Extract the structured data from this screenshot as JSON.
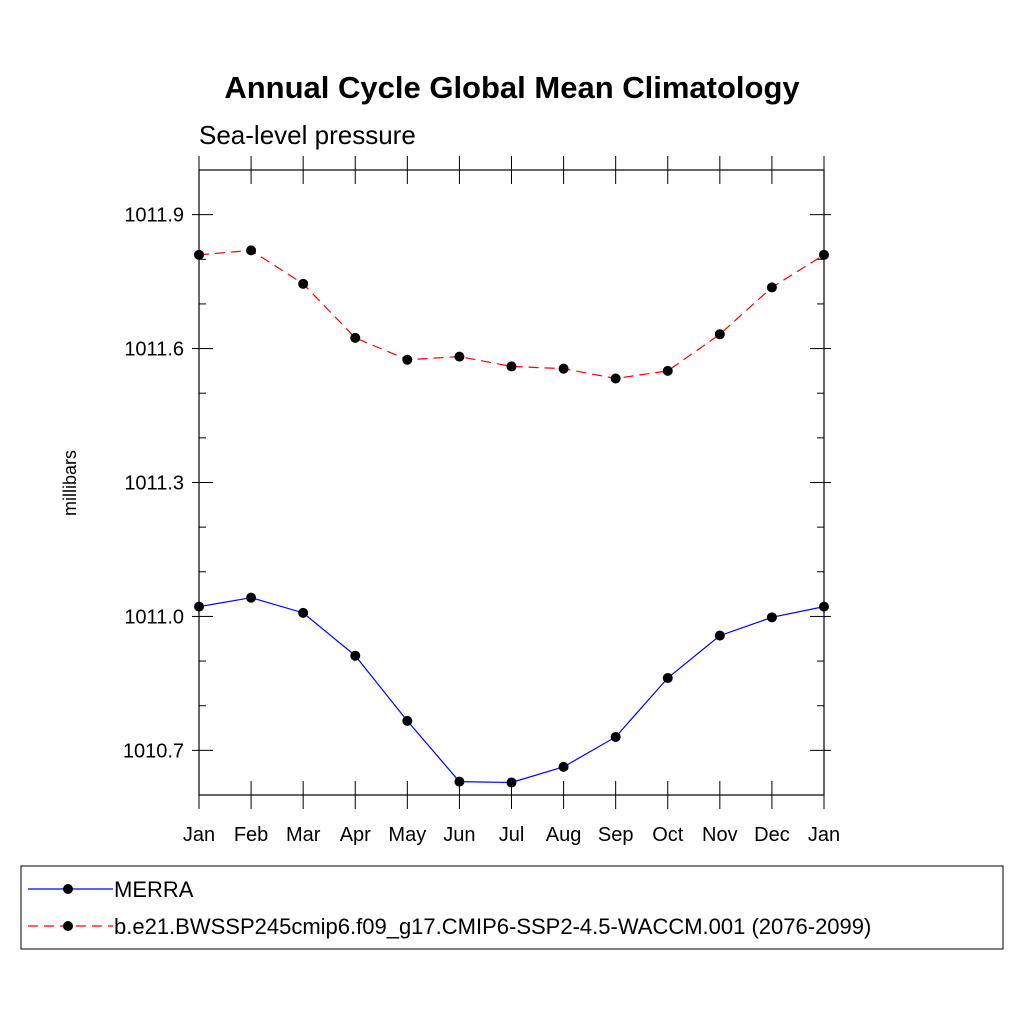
{
  "chart_data": {
    "type": "line",
    "title": "Annual Cycle Global Mean Climatology",
    "subtitle": "Sea-level pressure",
    "xlabel": "",
    "ylabel": "millibars",
    "categories": [
      "Jan",
      "Feb",
      "Mar",
      "Apr",
      "May",
      "Jun",
      "Jul",
      "Aug",
      "Sep",
      "Oct",
      "Nov",
      "Dec",
      "Jan"
    ],
    "ylim": [
      1010.6,
      1012.0
    ],
    "yticks_major": [
      1010.7,
      1011.0,
      1011.3,
      1011.6,
      1011.9
    ],
    "ytick_labels": [
      "1010.7",
      "1011.0",
      "1011.3",
      "1011.6",
      "1011.9"
    ],
    "yticks_minor_step": 0.1,
    "grid": false,
    "legend_position": "bottom",
    "series": [
      {
        "name": "MERRA",
        "color": "#0000ff",
        "dash": "solid",
        "marker_color": "#000000",
        "values": [
          1011.022,
          1011.042,
          1011.008,
          1010.912,
          1010.766,
          1010.63,
          1010.628,
          1010.663,
          1010.73,
          1010.862,
          1010.957,
          1010.998,
          1011.022
        ]
      },
      {
        "name": "b.e21.BWSSP245cmip6.f09_g17.CMIP6-SSP2-4.5-WACCM.001 (2076-2099)",
        "color": "#ff0000",
        "dash": "dashed",
        "marker_color": "#000000",
        "values": [
          1011.81,
          1011.82,
          1011.745,
          1011.624,
          1011.575,
          1011.582,
          1011.56,
          1011.555,
          1011.533,
          1011.55,
          1011.632,
          1011.737,
          1011.81
        ]
      }
    ]
  }
}
